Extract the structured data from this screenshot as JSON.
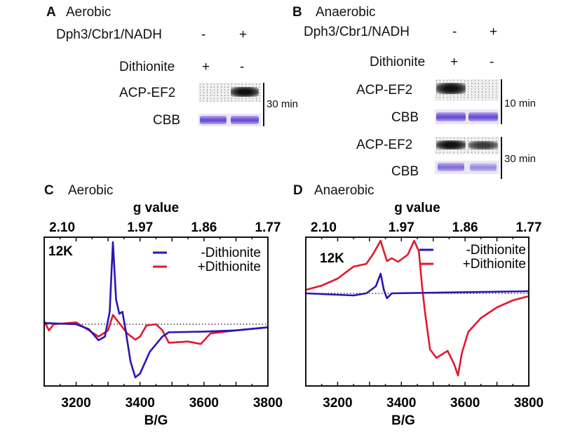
{
  "panelA": {
    "letter": "A",
    "title": "Aerobic",
    "row1_label": "Dph3/Cbr1/NADH",
    "row1_signs": [
      "-",
      "+"
    ],
    "row2_label": "Dithionite",
    "row2_signs": [
      "+",
      "-"
    ],
    "gel_label": "ACP-EF2",
    "stain_label": "CBB",
    "time": "30 min"
  },
  "panelB": {
    "letter": "B",
    "title": "Anaerobic",
    "row1_label": "Dph3/Cbr1/NADH",
    "row1_signs": [
      "-",
      "+"
    ],
    "row2_label": "Dithionite",
    "row2_signs": [
      "+",
      "-"
    ],
    "gel_label_1": "ACP-EF2",
    "stain_label_1": "CBB",
    "time_1": "10 min",
    "gel_label_2": "ACP-EF2",
    "stain_label_2": "CBB",
    "time_2": "30 min"
  },
  "chart_data": [
    {
      "type": "line",
      "panel": "C",
      "title": "Aerobic",
      "temperature": "12K",
      "xlabel": "B/G",
      "top_axis_label": "g value",
      "xlim": [
        3100,
        3800
      ],
      "ylim": [
        -1,
        1.41
      ],
      "xticks": [
        "3200",
        "3400",
        "3600",
        "3800"
      ],
      "xtick_values": [
        3200,
        3400,
        3600,
        3800
      ],
      "gticks": [
        "2.10",
        "1.97",
        "1.86",
        "1.77"
      ],
      "gtick_positions": [
        3200,
        3400,
        3600,
        3800
      ],
      "baseline": 0,
      "legend": "top-right",
      "series": [
        {
          "name": "-Dithionite",
          "color": "#2a14b4",
          "x": [
            3100,
            3200,
            3240,
            3270,
            3290,
            3305,
            3315,
            3325,
            3335,
            3345,
            3355,
            3370,
            3385,
            3400,
            3430,
            3470,
            3490,
            3600,
            3700,
            3800
          ],
          "y": [
            0.02,
            0.0,
            -0.08,
            -0.26,
            -0.2,
            0.2,
            1.33,
            0.4,
            0.17,
            0.2,
            -0.1,
            -0.6,
            -0.86,
            -0.8,
            -0.45,
            -0.2,
            -0.13,
            -0.12,
            -0.1,
            -0.05
          ]
        },
        {
          "name": "+Dithionite",
          "color": "#e0192f",
          "x": [
            3100,
            3115,
            3130,
            3200,
            3240,
            3270,
            3300,
            3315,
            3330,
            3360,
            3385,
            3400,
            3420,
            3450,
            3470,
            3490,
            3550,
            3590,
            3620,
            3700,
            3800
          ],
          "y": [
            0.05,
            -0.1,
            0.0,
            0.03,
            -0.1,
            -0.2,
            -0.1,
            0.15,
            0.05,
            -0.15,
            -0.25,
            -0.2,
            -0.02,
            0.0,
            -0.1,
            -0.3,
            -0.28,
            -0.32,
            -0.15,
            -0.1,
            -0.05
          ]
        }
      ]
    },
    {
      "type": "line",
      "panel": "D",
      "title": "Anaerobic",
      "temperature": "12K",
      "xlabel": "B/G",
      "top_axis_label": "g value",
      "xlim": [
        3100,
        3800
      ],
      "ylim": [
        -1.32,
        0.8
      ],
      "xticks": [
        "3200",
        "3400",
        "3600",
        "3800"
      ],
      "xtick_values": [
        3200,
        3400,
        3600,
        3800
      ],
      "gticks": [
        "2.10",
        "1.97",
        "1.86",
        "1.77"
      ],
      "gtick_positions": [
        3200,
        3400,
        3600,
        3800
      ],
      "baseline": 0,
      "legend": "top-right",
      "series": [
        {
          "name": "-Dithionite",
          "color": "#2a14b4",
          "x": [
            3100,
            3250,
            3290,
            3320,
            3335,
            3345,
            3355,
            3370,
            3800
          ],
          "y": [
            0,
            -0.03,
            0,
            0.1,
            0.28,
            0.05,
            -0.07,
            0,
            0.03
          ]
        },
        {
          "name": "+Dithionite",
          "color": "#e0192f",
          "x": [
            3100,
            3150,
            3200,
            3250,
            3290,
            3310,
            3335,
            3345,
            3355,
            3370,
            3390,
            3420,
            3440,
            3455,
            3465,
            3475,
            3490,
            3510,
            3545,
            3565,
            3578,
            3590,
            3610,
            3650,
            3700,
            3750,
            3800
          ],
          "y": [
            0.05,
            0.11,
            0.21,
            0.38,
            0.42,
            0.55,
            0.75,
            0.6,
            0.46,
            0.5,
            0.45,
            0.55,
            0.75,
            0.6,
            0.1,
            -0.3,
            -0.8,
            -0.92,
            -0.82,
            -1.0,
            -1.17,
            -0.85,
            -0.55,
            -0.35,
            -0.2,
            -0.1,
            -0.04
          ]
        }
      ]
    }
  ]
}
